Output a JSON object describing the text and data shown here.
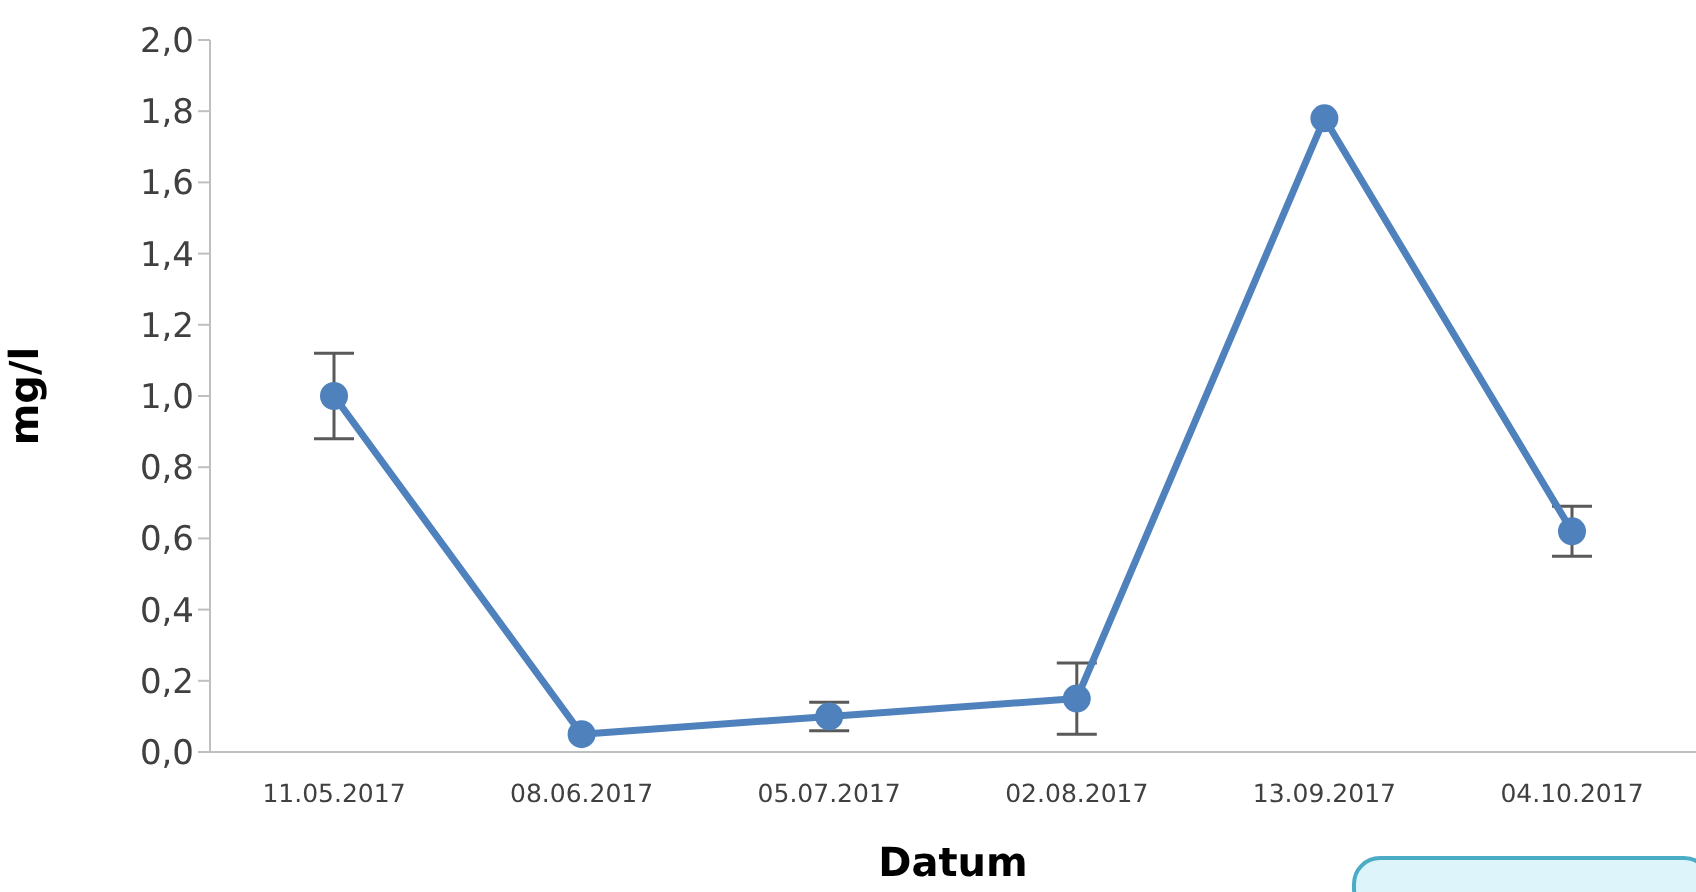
{
  "chart_data": {
    "type": "line",
    "xlabel": "Datum",
    "ylabel": "mg/l",
    "categories": [
      "11.05.2017",
      "08.06.2017",
      "05.07.2017",
      "02.08.2017",
      "13.09.2017",
      "04.10.2017"
    ],
    "series": [
      {
        "color": "#4f81bd",
        "values": [
          1.0,
          0.05,
          0.1,
          0.15,
          1.78,
          0.62
        ],
        "errors": [
          0.12,
          null,
          0.04,
          0.1,
          null,
          0.07
        ]
      }
    ],
    "ylim": [
      0,
      2
    ],
    "yticks": [
      {
        "value": 0,
        "label": "0,0"
      },
      {
        "value": 0.2,
        "label": "0,2"
      },
      {
        "value": 0.4,
        "label": "0,4"
      },
      {
        "value": 0.6,
        "label": "0,6"
      },
      {
        "value": 0.8,
        "label": "0,8"
      },
      {
        "value": 1,
        "label": "1,0"
      },
      {
        "value": 1.2,
        "label": "1,2"
      },
      {
        "value": 1.4,
        "label": "1,4"
      },
      {
        "value": 1.6,
        "label": "1,6"
      },
      {
        "value": 1.8,
        "label": "1,8"
      },
      {
        "value": 2,
        "label": "2,0"
      }
    ],
    "marker": "circle",
    "line_style": "solid",
    "grid": false,
    "legend": false
  }
}
